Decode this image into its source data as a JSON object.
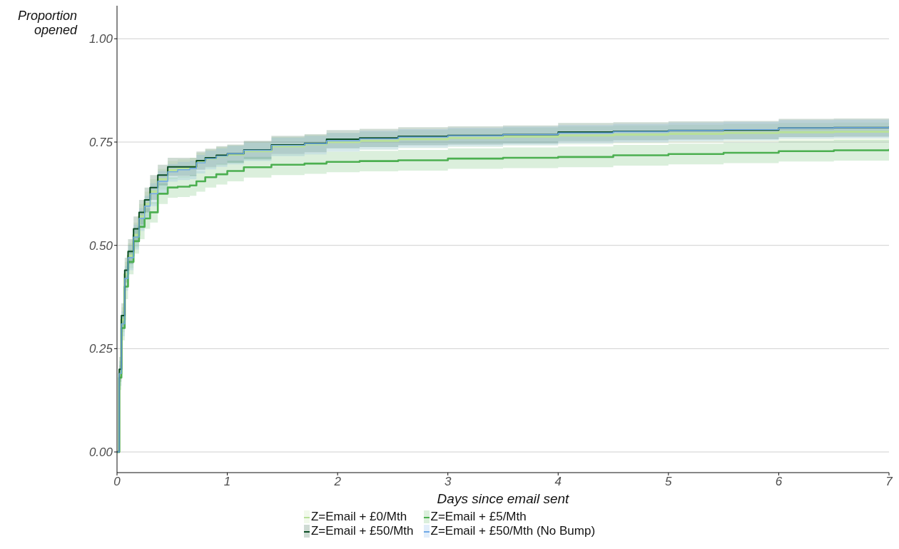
{
  "chart_data": {
    "type": "step",
    "xlabel": "Days since email sent",
    "ylabel": "Proportion opened",
    "x": [
      0,
      0.02,
      0.04,
      0.07,
      0.1,
      0.15,
      0.2,
      0.25,
      0.3,
      0.37,
      0.46,
      0.55,
      0.66,
      0.72,
      0.8,
      0.9,
      1.0,
      1.15,
      1.4,
      1.7,
      1.9,
      2.2,
      2.55,
      3.0,
      3.5,
      4.0,
      4.5,
      5.0,
      5.5,
      6.0,
      6.5,
      7.0
    ],
    "series": [
      {
        "name": "Z=Email + £0/Mth",
        "color": "#b8e09a",
        "values": [
          0,
          0.19,
          0.32,
          0.43,
          0.475,
          0.525,
          0.57,
          0.6,
          0.63,
          0.66,
          0.682,
          0.686,
          0.69,
          0.702,
          0.71,
          0.716,
          0.72,
          0.728,
          0.74,
          0.745,
          0.75,
          0.753,
          0.757,
          0.76,
          0.763,
          0.766,
          0.768,
          0.77,
          0.772,
          0.774,
          0.775,
          0.776
        ],
        "lower": [
          0,
          0.16,
          0.29,
          0.4,
          0.445,
          0.495,
          0.54,
          0.57,
          0.6,
          0.635,
          0.66,
          0.664,
          0.668,
          0.68,
          0.688,
          0.694,
          0.698,
          0.706,
          0.718,
          0.723,
          0.728,
          0.731,
          0.735,
          0.738,
          0.741,
          0.744,
          0.746,
          0.748,
          0.75,
          0.752,
          0.753,
          0.754
        ],
        "upper": [
          0,
          0.22,
          0.35,
          0.46,
          0.505,
          0.555,
          0.6,
          0.63,
          0.66,
          0.685,
          0.704,
          0.708,
          0.712,
          0.724,
          0.732,
          0.738,
          0.742,
          0.75,
          0.762,
          0.767,
          0.772,
          0.775,
          0.779,
          0.782,
          0.785,
          0.788,
          0.79,
          0.792,
          0.794,
          0.796,
          0.797,
          0.798
        ]
      },
      {
        "name": "Z=Email + £5/Mth",
        "color": "#4caf50",
        "values": [
          0,
          0.18,
          0.3,
          0.4,
          0.46,
          0.51,
          0.545,
          0.565,
          0.58,
          0.625,
          0.64,
          0.642,
          0.645,
          0.655,
          0.665,
          0.672,
          0.68,
          0.689,
          0.695,
          0.698,
          0.702,
          0.704,
          0.706,
          0.71,
          0.712,
          0.714,
          0.718,
          0.721,
          0.724,
          0.728,
          0.73,
          0.733
        ],
        "lower": [
          0,
          0.15,
          0.27,
          0.37,
          0.43,
          0.48,
          0.515,
          0.54,
          0.555,
          0.6,
          0.615,
          0.617,
          0.62,
          0.63,
          0.64,
          0.647,
          0.655,
          0.664,
          0.67,
          0.673,
          0.677,
          0.679,
          0.681,
          0.685,
          0.687,
          0.689,
          0.693,
          0.696,
          0.699,
          0.703,
          0.705,
          0.708
        ],
        "upper": [
          0,
          0.21,
          0.33,
          0.43,
          0.49,
          0.54,
          0.575,
          0.59,
          0.605,
          0.65,
          0.665,
          0.667,
          0.67,
          0.68,
          0.69,
          0.697,
          0.705,
          0.714,
          0.72,
          0.723,
          0.727,
          0.729,
          0.731,
          0.735,
          0.737,
          0.739,
          0.743,
          0.746,
          0.749,
          0.753,
          0.755,
          0.758
        ]
      },
      {
        "name": "Z=Email + £50/Mth",
        "color": "#0b4d24",
        "values": [
          0,
          0.2,
          0.33,
          0.44,
          0.485,
          0.54,
          0.58,
          0.61,
          0.64,
          0.67,
          0.69,
          0.69,
          0.69,
          0.705,
          0.712,
          0.718,
          0.722,
          0.731,
          0.743,
          0.747,
          0.757,
          0.76,
          0.764,
          0.766,
          0.768,
          0.774,
          0.776,
          0.778,
          0.779,
          0.784,
          0.785,
          0.787
        ],
        "lower": [
          0,
          0.17,
          0.3,
          0.41,
          0.455,
          0.51,
          0.55,
          0.58,
          0.61,
          0.645,
          0.668,
          0.668,
          0.668,
          0.683,
          0.69,
          0.696,
          0.7,
          0.709,
          0.721,
          0.725,
          0.735,
          0.738,
          0.742,
          0.744,
          0.746,
          0.752,
          0.754,
          0.756,
          0.757,
          0.762,
          0.763,
          0.765
        ],
        "upper": [
          0,
          0.23,
          0.36,
          0.47,
          0.515,
          0.57,
          0.61,
          0.64,
          0.67,
          0.695,
          0.712,
          0.712,
          0.712,
          0.727,
          0.734,
          0.74,
          0.744,
          0.753,
          0.765,
          0.769,
          0.779,
          0.782,
          0.786,
          0.788,
          0.79,
          0.796,
          0.798,
          0.8,
          0.801,
          0.806,
          0.807,
          0.809
        ]
      },
      {
        "name": "Z=Email + £50/Mth (No Bump)",
        "color": "#6fa8e6",
        "values": [
          0,
          0.19,
          0.31,
          0.42,
          0.47,
          0.52,
          0.565,
          0.595,
          0.625,
          0.655,
          0.678,
          0.683,
          0.686,
          0.7,
          0.71,
          0.716,
          0.722,
          0.73,
          0.742,
          0.746,
          0.753,
          0.758,
          0.762,
          0.765,
          0.768,
          0.772,
          0.775,
          0.778,
          0.78,
          0.784,
          0.785,
          0.787
        ],
        "lower": [
          0,
          0.16,
          0.28,
          0.39,
          0.44,
          0.49,
          0.535,
          0.565,
          0.595,
          0.625,
          0.654,
          0.658,
          0.66,
          0.674,
          0.684,
          0.69,
          0.696,
          0.704,
          0.716,
          0.72,
          0.727,
          0.732,
          0.736,
          0.739,
          0.742,
          0.746,
          0.749,
          0.752,
          0.754,
          0.758,
          0.759,
          0.761
        ],
        "upper": [
          0,
          0.22,
          0.34,
          0.45,
          0.5,
          0.55,
          0.59,
          0.62,
          0.65,
          0.68,
          0.697,
          0.702,
          0.705,
          0.719,
          0.729,
          0.735,
          0.741,
          0.749,
          0.761,
          0.765,
          0.772,
          0.777,
          0.781,
          0.784,
          0.787,
          0.791,
          0.794,
          0.797,
          0.799,
          0.803,
          0.804,
          0.806
        ]
      }
    ],
    "xlim": [
      0,
      7
    ],
    "xticks": [
      0,
      1,
      2,
      3,
      4,
      5,
      6,
      7
    ],
    "ylim": [
      -0.05,
      1.08
    ],
    "yticks": [
      {
        "value": 0,
        "label": "0.00"
      },
      {
        "value": 0.25,
        "label": "0.25"
      },
      {
        "value": 0.5,
        "label": "0.50"
      },
      {
        "value": 0.75,
        "label": "0.75"
      },
      {
        "value": 1,
        "label": "1.00"
      }
    ],
    "grid": "y",
    "legend": "bottom"
  }
}
